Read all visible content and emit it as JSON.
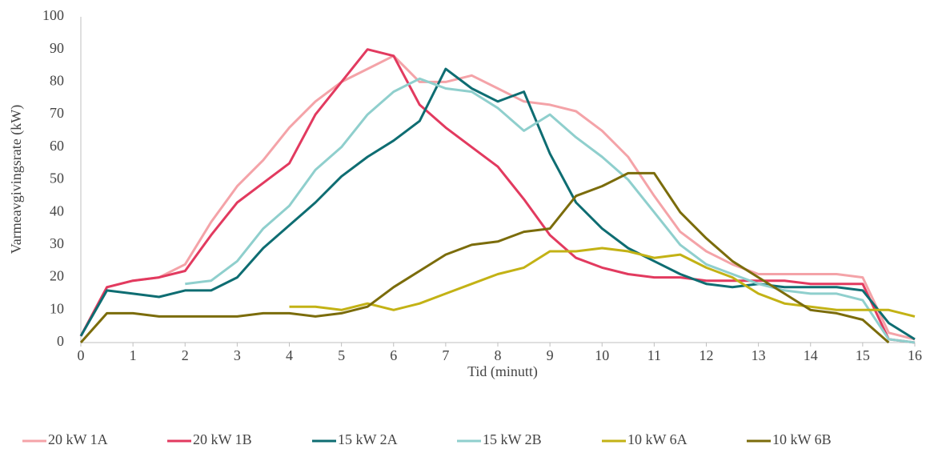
{
  "chart_data": {
    "type": "line",
    "x_label": "Tid (minutt)",
    "y_label": "Varmeavgivingsrate (kW)",
    "x": [
      0,
      0.5,
      1,
      1.5,
      2,
      2.5,
      3,
      3.5,
      4,
      4.5,
      5,
      5.5,
      6,
      6.5,
      7,
      7.5,
      8,
      8.5,
      9,
      9.5,
      10,
      10.5,
      11,
      11.5,
      12,
      12.5,
      13,
      13.5,
      14,
      14.5,
      15,
      15.5,
      16
    ],
    "xlim": [
      0,
      16
    ],
    "xticks": [
      0,
      1,
      2,
      3,
      4,
      5,
      6,
      7,
      8,
      9,
      10,
      11,
      12,
      13,
      14,
      15,
      16
    ],
    "ylim": [
      0,
      100
    ],
    "yticks": [
      0,
      10,
      20,
      30,
      40,
      50,
      60,
      70,
      80,
      90,
      100
    ],
    "grid": false,
    "legend": "bottom",
    "series": [
      {
        "name": "20 kW 1A",
        "color": "#f4a3a8",
        "values": [
          2,
          17,
          19,
          20,
          24,
          37,
          48,
          56,
          66,
          74,
          80,
          84,
          88,
          80,
          80,
          82,
          78,
          74,
          73,
          71,
          65,
          57,
          45,
          34,
          28,
          24,
          21,
          21,
          21,
          21,
          20,
          3,
          1
        ]
      },
      {
        "name": "20 kW 1B",
        "color": "#e23a5f",
        "values": [
          2,
          17,
          19,
          20,
          22,
          33,
          43,
          49,
          55,
          70,
          80,
          90,
          88,
          73,
          66,
          60,
          54,
          44,
          33,
          26,
          23,
          21,
          20,
          20,
          19,
          19,
          19,
          19,
          18,
          18,
          18,
          1,
          0
        ]
      },
      {
        "name": "15 kW 2A",
        "color": "#0e6d72",
        "values": [
          2,
          16,
          15,
          14,
          16,
          16,
          20,
          29,
          36,
          43,
          51,
          57,
          62,
          68,
          84,
          78,
          74,
          77,
          58,
          43,
          35,
          29,
          25,
          21,
          18,
          17,
          18,
          17,
          17,
          17,
          16,
          6,
          1
        ]
      },
      {
        "name": "15 kW 2B",
        "color": "#8fcfcd",
        "values": [
          null,
          null,
          null,
          null,
          18,
          19,
          25,
          35,
          42,
          53,
          60,
          70,
          77,
          81,
          78,
          77,
          72,
          65,
          70,
          63,
          57,
          50,
          40,
          30,
          24,
          21,
          18,
          16,
          15,
          15,
          13,
          1,
          0
        ]
      },
      {
        "name": "10 kW 6A",
        "color": "#c3b215",
        "values": [
          null,
          null,
          null,
          null,
          null,
          null,
          null,
          null,
          11,
          11,
          10,
          12,
          10,
          12,
          15,
          18,
          21,
          23,
          28,
          28,
          29,
          28,
          26,
          27,
          23,
          20,
          15,
          12,
          11,
          10,
          10,
          10,
          8
        ]
      },
      {
        "name": "10 kW 6B",
        "color": "#7b6c0b",
        "values": [
          0,
          9,
          9,
          8,
          8,
          8,
          8,
          9,
          9,
          8,
          9,
          11,
          17,
          22,
          27,
          30,
          31,
          34,
          35,
          45,
          48,
          52,
          52,
          40,
          32,
          25,
          20,
          15,
          10,
          9,
          7,
          0,
          null
        ]
      }
    ]
  }
}
